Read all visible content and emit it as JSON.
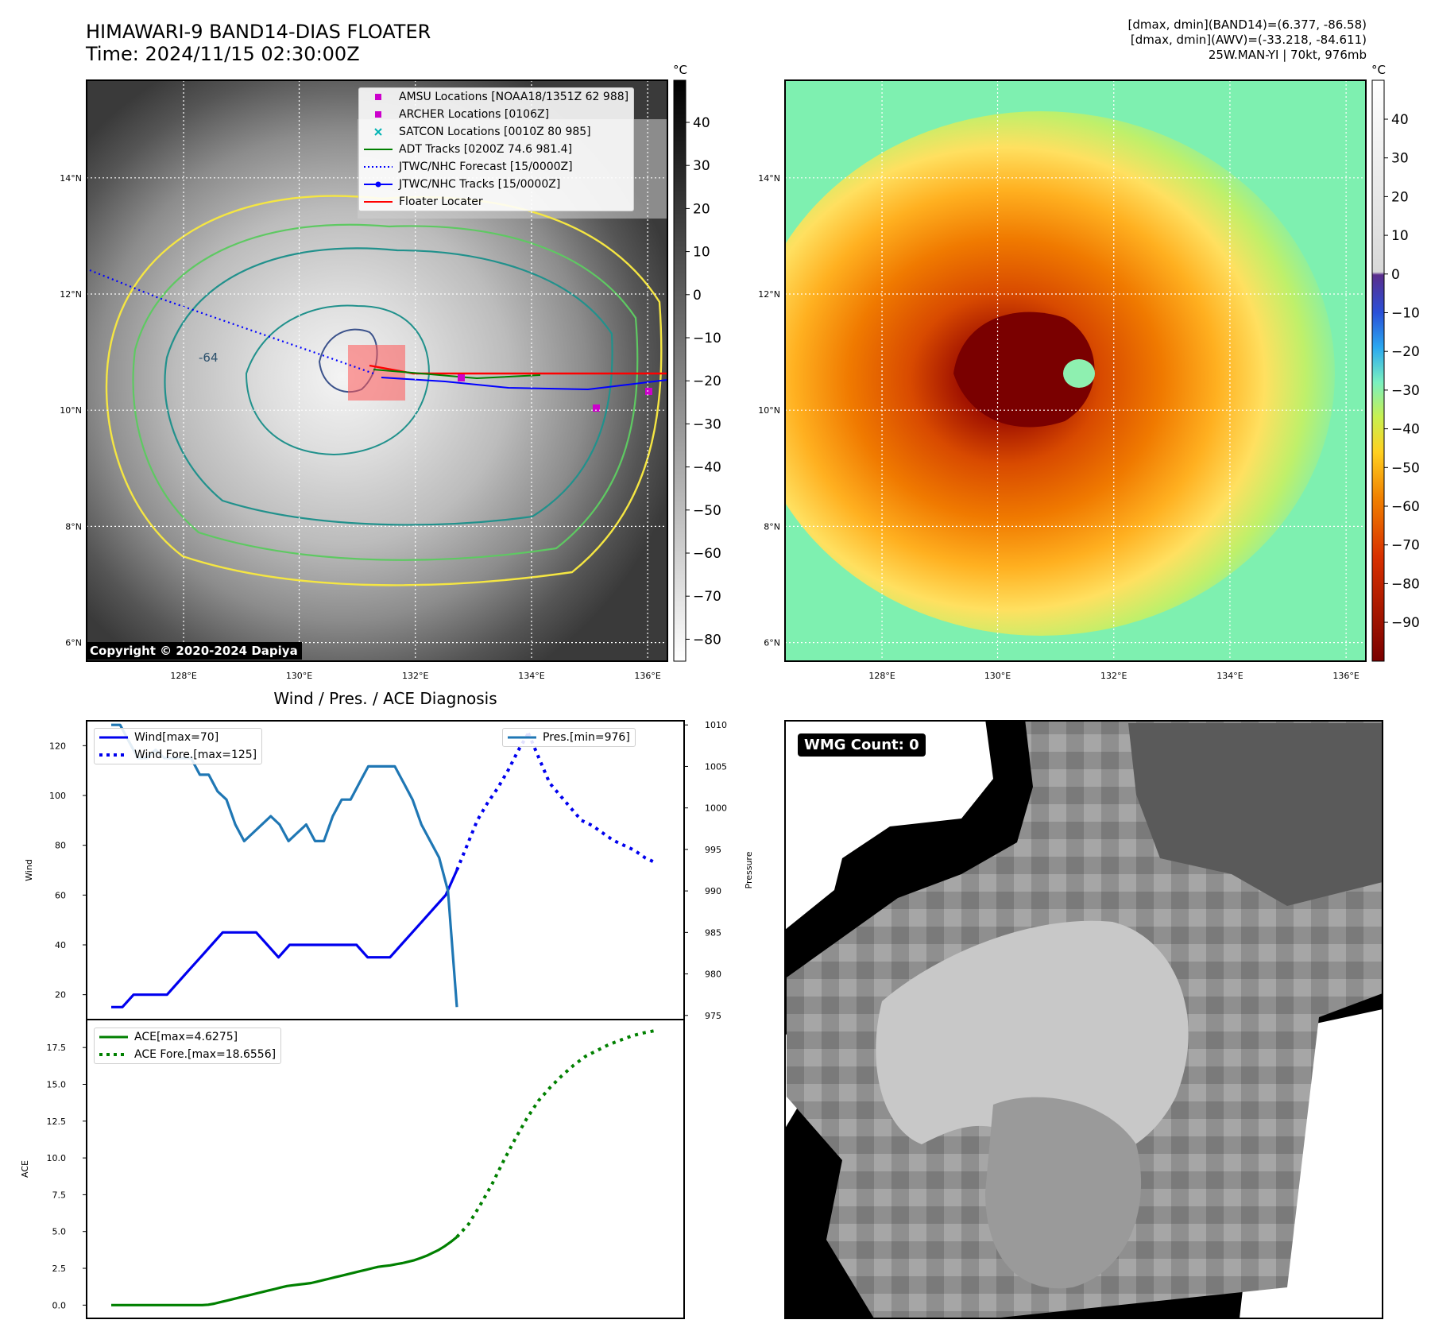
{
  "header": {
    "title_line1": "HIMAWARI-9 BAND14-DIAS FLOATER",
    "title_line2": "Time: 2024/11/15 02:30:00Z",
    "info_line1": "[dmax, dmin](BAND14)=(6.377, -86.58)",
    "info_line2": "[dmax, dmin](AWV)=(-33.218, -84.611)",
    "info_line3": "25W.MAN-YI | 70kt, 976mb"
  },
  "map_axes": {
    "lon_labels": [
      "128°E",
      "130°E",
      "132°E",
      "134°E",
      "136°E"
    ],
    "lat_labels": [
      "14°N",
      "12°N",
      "10°N",
      "8°N",
      "6°N"
    ],
    "contour_label": "-64"
  },
  "ir_panel": {
    "unit": "°C",
    "colorbar_ticks": [
      "40",
      "30",
      "20",
      "10",
      "0",
      "−10",
      "−20",
      "−30",
      "−40",
      "−50",
      "−60",
      "−70",
      "−80"
    ],
    "copyright": "Copyright © 2020-2024 Dapiya",
    "legend": [
      {
        "label": "AMSU Locations [NOAA18/1351Z 62 988]",
        "color": "#cc00cc",
        "kind": "square"
      },
      {
        "label": "ARCHER Locations [0106Z]",
        "color": "#cc00cc",
        "kind": "square"
      },
      {
        "label": "SATCON Locations [0010Z 80 985]",
        "color": "#00b3b3",
        "kind": "x"
      },
      {
        "label": "ADT Tracks [0200Z 74.6 981.4]",
        "color": "#008000",
        "kind": "line"
      },
      {
        "label": "JTWC/NHC Forecast [15/0000Z]",
        "color": "#0000ff",
        "kind": "dotted"
      },
      {
        "label": "JTWC/NHC Tracks [15/0000Z]",
        "color": "#0000ff",
        "kind": "linedot"
      },
      {
        "label": "Floater Locater",
        "color": "#ff0000",
        "kind": "line"
      }
    ]
  },
  "awv_panel": {
    "unit": "°C",
    "colorbar_ticks": [
      "40",
      "30",
      "20",
      "10",
      "0",
      "−10",
      "−20",
      "−30",
      "−40",
      "−50",
      "−60",
      "−70",
      "−80",
      "−90"
    ]
  },
  "diag_panel": {
    "title": "Wind / Pres. / ACE Diagnosis",
    "wind_ylabel": "Wind",
    "pres_ylabel": "Pressure",
    "ace_ylabel": "ACE",
    "wind_ticks": [
      "120",
      "100",
      "80",
      "60",
      "40",
      "20"
    ],
    "pres_ticks": [
      "1010",
      "1005",
      "1000",
      "995",
      "990",
      "985",
      "980",
      "975"
    ],
    "ace_ticks": [
      "17.5",
      "15.0",
      "12.5",
      "10.0",
      "7.5",
      "5.0",
      "2.5",
      "0.0"
    ],
    "legend_wind": "Wind[max=70]",
    "legend_wind_fore": "Wind Fore.[max=125]",
    "legend_pres": "Pres.[min=976]",
    "legend_ace": "ACE[max=4.6275]",
    "legend_ace_fore": "ACE Fore.[max=18.6556]"
  },
  "wmg_panel": {
    "label": "WMG Count: 0"
  },
  "colors": {
    "wind": "#0000ee",
    "pressure": "#1f77b4",
    "ace": "#008000",
    "contour_yellow": "#f5e642",
    "contour_green": "#5ec962",
    "contour_teal": "#21918c",
    "contour_navy": "#3b528b"
  },
  "chart_data": [
    {
      "type": "line",
      "title": "Wind / Pres. / ACE Diagnosis",
      "ylabel": "Wind",
      "ylim": [
        10,
        130
      ],
      "series": [
        {
          "name": "Wind[max=70]",
          "style": "solid",
          "values": [
            15,
            15,
            20,
            20,
            20,
            20,
            25,
            30,
            35,
            40,
            45,
            45,
            45,
            45,
            40,
            35,
            40,
            40,
            40,
            40,
            40,
            40,
            40,
            35,
            35,
            35,
            40,
            45,
            50,
            55,
            60,
            70
          ]
        },
        {
          "name": "Wind Fore.[max=125]",
          "style": "dotted",
          "values": [
            70,
            80,
            90,
            97,
            103,
            110,
            118,
            125
          ]
        }
      ]
    },
    {
      "type": "line",
      "ylabel": "Pressure",
      "ylim": [
        974.5,
        1010.5
      ],
      "series": [
        {
          "name": "Pres.[min=976]",
          "style": "solid",
          "values": [
            1010,
            1010,
            1008,
            1006,
            1006,
            1007,
            1006,
            1006,
            1006,
            1006,
            1004,
            1004,
            1002,
            1001,
            998,
            996,
            997,
            998,
            999,
            998,
            996,
            997,
            998,
            996,
            996,
            999,
            1001,
            1001,
            1003,
            1005,
            1005,
            1005,
            1005,
            1003,
            1001,
            998,
            996,
            994,
            990,
            976
          ]
        }
      ]
    },
    {
      "type": "line",
      "ylabel": "ACE",
      "ylim": [
        -0.9,
        19.4
      ],
      "series": [
        {
          "name": "ACE[max=4.6275]",
          "style": "solid",
          "values": [
            0,
            0,
            0,
            0,
            0,
            0,
            0,
            0,
            0,
            0,
            0,
            0,
            0,
            0,
            0,
            0,
            0.03,
            0.1,
            0.2,
            0.3,
            0.4,
            0.5,
            0.6,
            0.7,
            0.8,
            0.9,
            1.0,
            1.1,
            1.2,
            1.3,
            1.35,
            1.4,
            1.45,
            1.5,
            1.6,
            1.7,
            1.8,
            1.9,
            2.0,
            2.1,
            2.2,
            2.3,
            2.4,
            2.5,
            2.6,
            2.65,
            2.7,
            2.78,
            2.85,
            2.95,
            3.05,
            3.2,
            3.35,
            3.55,
            3.75,
            4.0,
            4.3,
            4.6275
          ]
        },
        {
          "name": "ACE Fore.[max=18.6556]",
          "style": "dotted",
          "values": [
            4.6275,
            5.5,
            6.8,
            8.2,
            9.8,
            11.3,
            12.7,
            13.9,
            14.8,
            15.6,
            16.3,
            16.9,
            17.3,
            17.7,
            18.0,
            18.3,
            18.5,
            18.6556
          ]
        }
      ]
    }
  ]
}
